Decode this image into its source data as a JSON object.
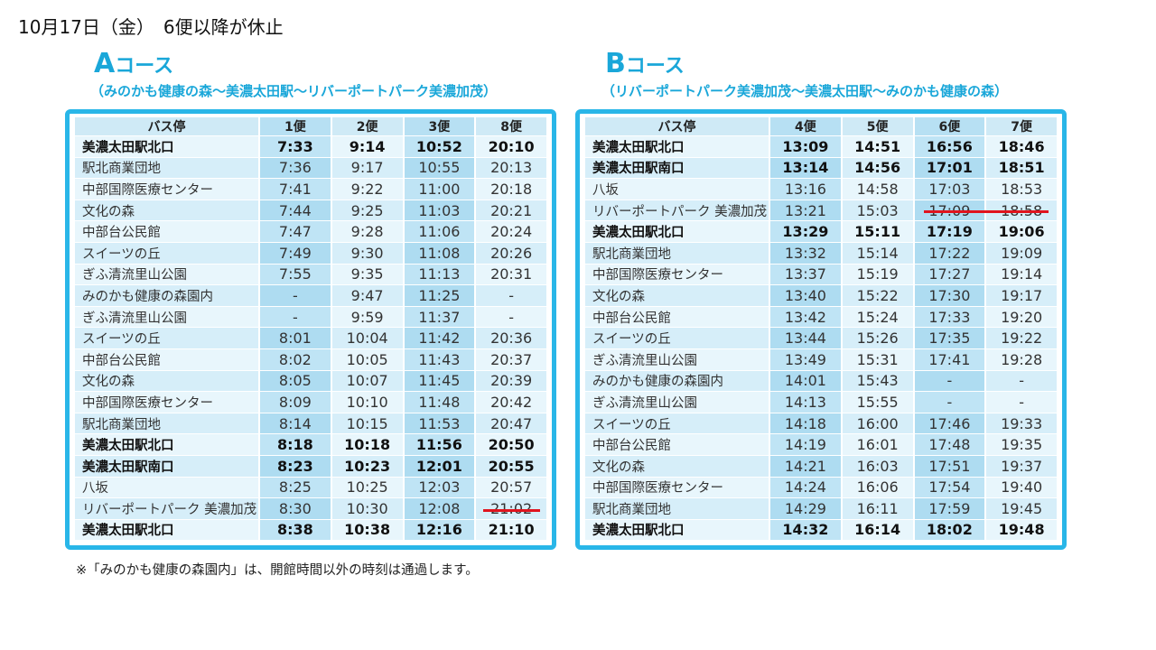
{
  "page_title": "10月17日（金）　6便以降が休止",
  "footnote": "※「みのかも健康の森園内」は、開館時間以外の時刻は通過します。",
  "course_a": {
    "letter": "A",
    "name": "コース",
    "route": "（みのかも健康の森〜美濃太田駅〜リバーポートパーク美濃加茂）",
    "headers": [
      "バス停",
      "1便",
      "2便",
      "3便",
      "8便"
    ],
    "rows": [
      {
        "stop": "美濃太田駅北口",
        "times": [
          "7:33",
          "9:14",
          "10:52",
          "20:10"
        ],
        "bold": true
      },
      {
        "stop": "駅北商業団地",
        "times": [
          "7:36",
          "9:17",
          "10:55",
          "20:13"
        ],
        "bold": false
      },
      {
        "stop": "中部国際医療センター",
        "times": [
          "7:41",
          "9:22",
          "11:00",
          "20:18"
        ],
        "bold": false
      },
      {
        "stop": "文化の森",
        "times": [
          "7:44",
          "9:25",
          "11:03",
          "20:21"
        ],
        "bold": false
      },
      {
        "stop": "中部台公民館",
        "times": [
          "7:47",
          "9:28",
          "11:06",
          "20:24"
        ],
        "bold": false
      },
      {
        "stop": "スイーツの丘",
        "times": [
          "7:49",
          "9:30",
          "11:08",
          "20:26"
        ],
        "bold": false
      },
      {
        "stop": "ぎふ清流里山公園",
        "times": [
          "7:55",
          "9:35",
          "11:13",
          "20:31"
        ],
        "bold": false
      },
      {
        "stop": "みのかも健康の森園内",
        "times": [
          "-",
          "9:47",
          "11:25",
          "-"
        ],
        "bold": false
      },
      {
        "stop": "ぎふ清流里山公園",
        "times": [
          "-",
          "9:59",
          "11:37",
          "-"
        ],
        "bold": false
      },
      {
        "stop": "スイーツの丘",
        "times": [
          "8:01",
          "10:04",
          "11:42",
          "20:36"
        ],
        "bold": false
      },
      {
        "stop": "中部台公民館",
        "times": [
          "8:02",
          "10:05",
          "11:43",
          "20:37"
        ],
        "bold": false
      },
      {
        "stop": "文化の森",
        "times": [
          "8:05",
          "10:07",
          "11:45",
          "20:39"
        ],
        "bold": false
      },
      {
        "stop": "中部国際医療センター",
        "times": [
          "8:09",
          "10:10",
          "11:48",
          "20:42"
        ],
        "bold": false
      },
      {
        "stop": "駅北商業団地",
        "times": [
          "8:14",
          "10:15",
          "11:53",
          "20:47"
        ],
        "bold": false
      },
      {
        "stop": "美濃太田駅北口",
        "times": [
          "8:18",
          "10:18",
          "11:56",
          "20:50"
        ],
        "bold": true
      },
      {
        "stop": "美濃太田駅南口",
        "times": [
          "8:23",
          "10:23",
          "12:01",
          "20:55"
        ],
        "bold": true
      },
      {
        "stop": "八坂",
        "times": [
          "8:25",
          "10:25",
          "12:03",
          "20:57"
        ],
        "bold": false
      },
      {
        "stop": "リバーポートパーク 美濃加茂",
        "times": [
          "8:30",
          "10:30",
          "12:08",
          "21:02"
        ],
        "bold": false
      },
      {
        "stop": "美濃太田駅北口",
        "times": [
          "8:38",
          "10:38",
          "12:16",
          "21:10"
        ],
        "bold": true
      }
    ]
  },
  "course_b": {
    "letter": "B",
    "name": "コース",
    "route": "（リバーポートパーク美濃加茂〜美濃太田駅〜みのかも健康の森）",
    "headers": [
      "バス停",
      "4便",
      "5便",
      "6便",
      "7便"
    ],
    "rows": [
      {
        "stop": "美濃太田駅北口",
        "times": [
          "13:09",
          "14:51",
          "16:56",
          "18:46"
        ],
        "bold": true
      },
      {
        "stop": "美濃太田駅南口",
        "times": [
          "13:14",
          "14:56",
          "17:01",
          "18:51"
        ],
        "bold": true
      },
      {
        "stop": "八坂",
        "times": [
          "13:16",
          "14:58",
          "17:03",
          "18:53"
        ],
        "bold": false
      },
      {
        "stop": "リバーポートパーク 美濃加茂",
        "times": [
          "13:21",
          "15:03",
          "17:09",
          "18:58"
        ],
        "bold": false
      },
      {
        "stop": "美濃太田駅北口",
        "times": [
          "13:29",
          "15:11",
          "17:19",
          "19:06"
        ],
        "bold": true
      },
      {
        "stop": "駅北商業団地",
        "times": [
          "13:32",
          "15:14",
          "17:22",
          "19:09"
        ],
        "bold": false
      },
      {
        "stop": "中部国際医療センター",
        "times": [
          "13:37",
          "15:19",
          "17:27",
          "19:14"
        ],
        "bold": false
      },
      {
        "stop": "文化の森",
        "times": [
          "13:40",
          "15:22",
          "17:30",
          "19:17"
        ],
        "bold": false
      },
      {
        "stop": "中部台公民館",
        "times": [
          "13:42",
          "15:24",
          "17:33",
          "19:20"
        ],
        "bold": false
      },
      {
        "stop": "スイーツの丘",
        "times": [
          "13:44",
          "15:26",
          "17:35",
          "19:22"
        ],
        "bold": false
      },
      {
        "stop": "ぎふ清流里山公園",
        "times": [
          "13:49",
          "15:31",
          "17:41",
          "19:28"
        ],
        "bold": false
      },
      {
        "stop": "みのかも健康の森園内",
        "times": [
          "14:01",
          "15:43",
          "-",
          "-"
        ],
        "bold": false
      },
      {
        "stop": "ぎふ清流里山公園",
        "times": [
          "14:13",
          "15:55",
          "-",
          "-"
        ],
        "bold": false
      },
      {
        "stop": "スイーツの丘",
        "times": [
          "14:18",
          "16:00",
          "17:46",
          "19:33"
        ],
        "bold": false
      },
      {
        "stop": "中部台公民館",
        "times": [
          "14:19",
          "16:01",
          "17:48",
          "19:35"
        ],
        "bold": false
      },
      {
        "stop": "文化の森",
        "times": [
          "14:21",
          "16:03",
          "17:51",
          "19:37"
        ],
        "bold": false
      },
      {
        "stop": "中部国際医療センター",
        "times": [
          "14:24",
          "16:06",
          "17:54",
          "19:40"
        ],
        "bold": false
      },
      {
        "stop": "駅北商業団地",
        "times": [
          "14:29",
          "16:11",
          "17:59",
          "19:45"
        ],
        "bold": false
      },
      {
        "stop": "美濃太田駅北口",
        "times": [
          "14:32",
          "16:14",
          "18:02",
          "19:48"
        ],
        "bold": true
      }
    ]
  },
  "colors": {
    "accent": "#29b6e8",
    "cancel": "#e0141e"
  }
}
